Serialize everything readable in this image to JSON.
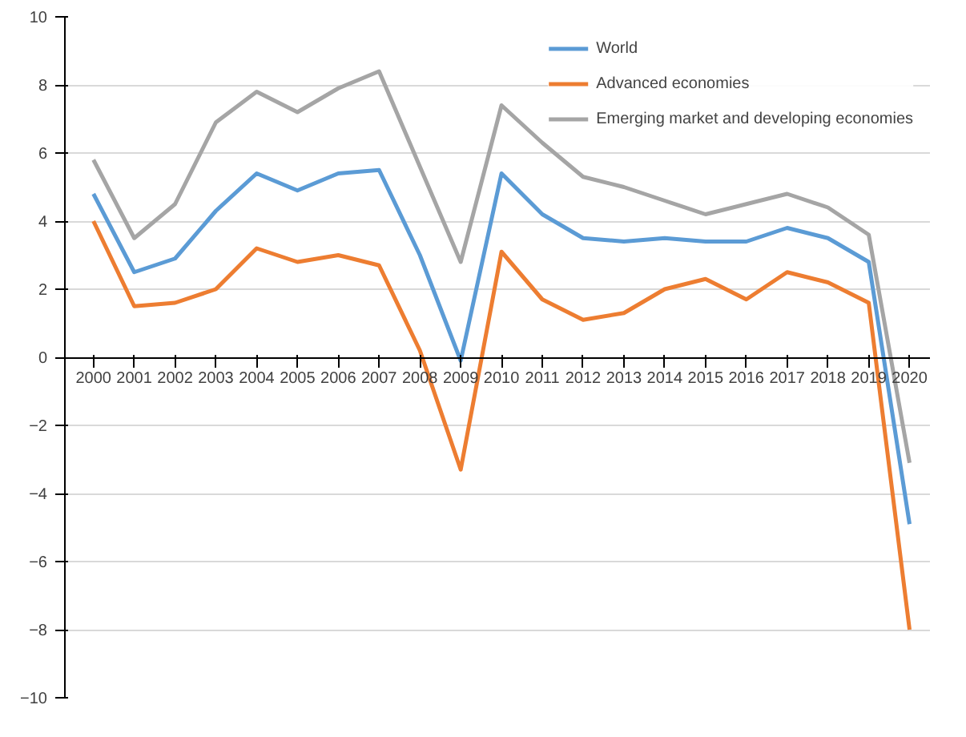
{
  "chart_data": {
    "type": "line",
    "categories": [
      "2000",
      "2001",
      "2002",
      "2003",
      "2004",
      "2005",
      "2006",
      "2007",
      "2008",
      "2009",
      "2010",
      "2011",
      "2012",
      "2013",
      "2014",
      "2015",
      "2016",
      "2017",
      "2018",
      "2019",
      "2020"
    ],
    "series": [
      {
        "name": "World",
        "color": "#5b9bd5",
        "values": [
          4.8,
          2.5,
          2.9,
          4.3,
          5.4,
          4.9,
          5.4,
          5.5,
          3.0,
          -0.1,
          5.4,
          4.2,
          3.5,
          3.4,
          3.5,
          3.4,
          3.4,
          3.8,
          3.5,
          2.8,
          -4.9
        ]
      },
      {
        "name": "Advanced economies",
        "color": "#ed7d31",
        "values": [
          4.0,
          1.5,
          1.6,
          2.0,
          3.2,
          2.8,
          3.0,
          2.7,
          0.2,
          -3.3,
          3.1,
          1.7,
          1.1,
          1.3,
          2.0,
          2.3,
          1.7,
          2.5,
          2.2,
          1.6,
          -8.0
        ]
      },
      {
        "name": "Emerging market and developing economies",
        "color": "#a5a5a5",
        "values": [
          5.8,
          3.5,
          4.5,
          6.9,
          7.8,
          7.2,
          7.9,
          8.4,
          5.6,
          2.8,
          7.4,
          6.3,
          5.3,
          5.0,
          4.6,
          4.2,
          4.5,
          4.8,
          4.4,
          3.6,
          -3.1
        ]
      }
    ],
    "ylim": [
      -10,
      10
    ],
    "yticks": [
      -10,
      -8,
      -6,
      -4,
      -2,
      0,
      2,
      4,
      6,
      8,
      10
    ],
    "grid": "y",
    "legend": "top right",
    "marker": "none",
    "line_style": "solid"
  }
}
